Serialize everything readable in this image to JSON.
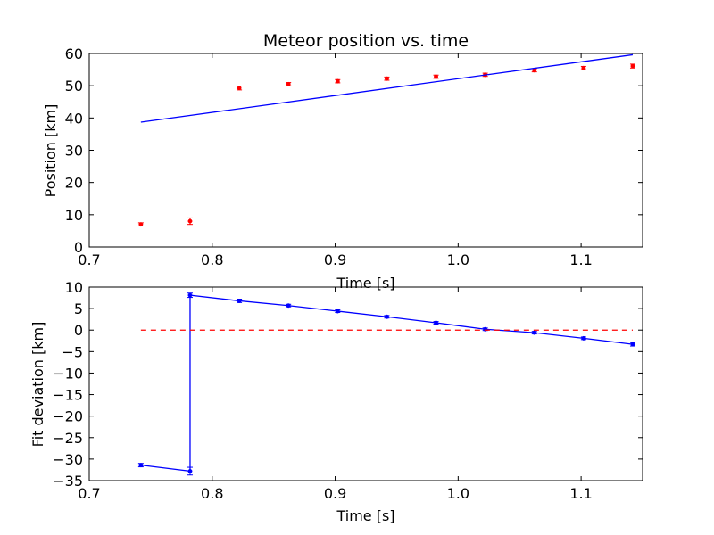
{
  "chart_data": [
    {
      "type": "scatter",
      "title": "Meteor position vs. time",
      "xlabel": "Time [s]",
      "ylabel": "Position [km]",
      "xlim": [
        0.7,
        1.15
      ],
      "ylim": [
        0,
        60
      ],
      "xticks": [
        "0.7",
        "0.8",
        "0.9",
        "1.0",
        "1.1"
      ],
      "yticks": [
        "0",
        "10",
        "20",
        "30",
        "40",
        "50",
        "60"
      ],
      "grid": false,
      "series": [
        {
          "kind": "points-with-error-bars",
          "color": "#ff0000",
          "x": [
            0.742,
            0.782,
            0.822,
            0.862,
            0.902,
            0.942,
            0.982,
            1.022,
            1.062,
            1.102,
            1.142
          ],
          "y": [
            7.0,
            8.0,
            49.3,
            50.5,
            51.4,
            52.2,
            52.8,
            53.4,
            54.8,
            55.5,
            56.1
          ],
          "yerr": [
            0.5,
            1.0,
            0.6,
            0.5,
            0.5,
            0.5,
            0.5,
            0.5,
            0.5,
            0.5,
            0.6
          ]
        },
        {
          "kind": "fit-line",
          "color": "#0000ff",
          "x": [
            0.742,
            1.142
          ],
          "y": [
            38.7,
            59.6
          ]
        }
      ]
    },
    {
      "type": "line",
      "title": "",
      "xlabel": "Time [s]",
      "ylabel": "Fit deviation [km]",
      "xlim": [
        0.7,
        1.15
      ],
      "ylim": [
        -35,
        10
      ],
      "xticks": [
        "0.7",
        "0.8",
        "0.9",
        "1.0",
        "1.1"
      ],
      "yticks": [
        "10",
        "5",
        "0",
        "−5",
        "−10",
        "−15",
        "−20",
        "−25",
        "−30",
        "−35"
      ],
      "grid": false,
      "series": [
        {
          "kind": "line-with-markers",
          "color": "#0000ff",
          "x": [
            0.742,
            0.782,
            0.782,
            0.822,
            0.862,
            0.902,
            0.942,
            0.982,
            1.022,
            1.062,
            1.102,
            1.142
          ],
          "y": [
            -31.4,
            -32.8,
            8.1,
            6.8,
            5.7,
            4.4,
            3.1,
            1.7,
            0.2,
            -0.6,
            -1.9,
            -3.3
          ],
          "yerr": [
            0.4,
            0.9,
            0.5,
            0.4,
            0.3,
            0.3,
            0.3,
            0.3,
            0.3,
            0.3,
            0.3,
            0.4
          ]
        },
        {
          "kind": "zero-reference",
          "color": "#ff0000",
          "style": "dashed",
          "x": [
            0.742,
            1.142
          ],
          "y": [
            0,
            0
          ]
        }
      ]
    }
  ]
}
